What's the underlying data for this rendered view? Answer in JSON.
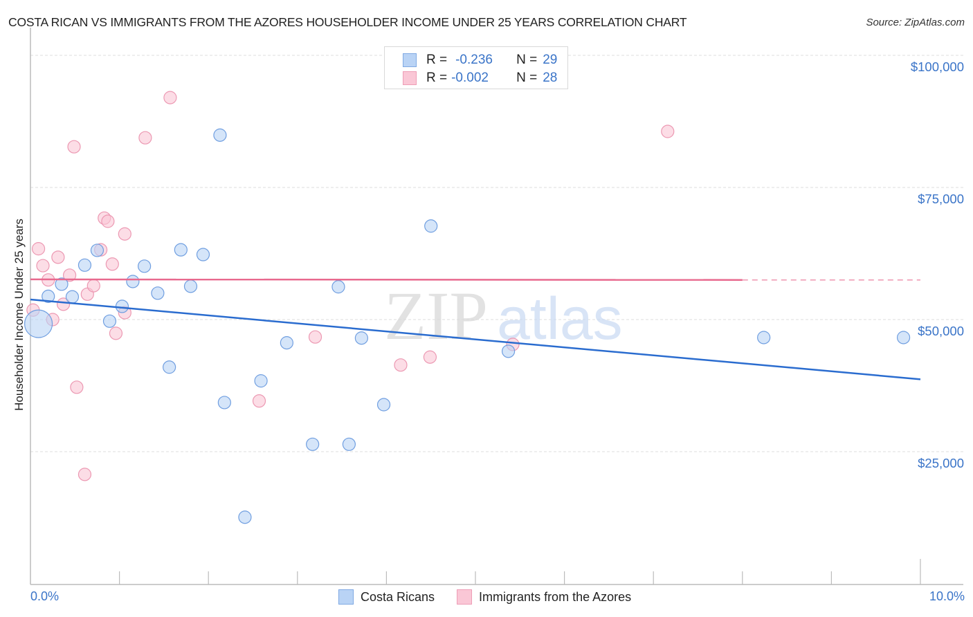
{
  "header": {
    "title": "COSTA RICAN VS IMMIGRANTS FROM THE AZORES HOUSEHOLDER INCOME UNDER 25 YEARS CORRELATION CHART",
    "source": "Source: ZipAtlas.com"
  },
  "stats_legend": {
    "rows": [
      {
        "series": "Costa Ricans",
        "r_label": "R =",
        "r_value": "-0.236",
        "n_label": "N =",
        "n_value": "29",
        "color": "#b9d3f5"
      },
      {
        "series": "Immigrants from the Azores",
        "r_label": "R =",
        "r_value": "-0.002",
        "n_label": "N =",
        "n_value": "28",
        "color": "#fac7d6"
      }
    ]
  },
  "axes": {
    "ylabel": "Householder Income Under 25 years",
    "yticks": [
      "$100,000",
      "$75,000",
      "$50,000",
      "$25,000"
    ],
    "xtick_left": "0.0%",
    "xtick_right": "10.0%"
  },
  "legend": {
    "items": [
      {
        "label": "Costa Ricans",
        "color": "#b9d3f5"
      },
      {
        "label": "Immigrants from the Azores",
        "color": "#fac7d6"
      }
    ]
  },
  "watermark": {
    "zip": "ZIP",
    "atlas": "atlas"
  },
  "colors": {
    "blue_fill": "#b9d3f5",
    "blue_stroke": "#6f9ee0",
    "blue_line": "#2a6ccf",
    "pink_fill": "#fac7d6",
    "pink_stroke": "#ec98b2",
    "pink_line": "#e8698e",
    "tick_text": "#3a74c8"
  },
  "chart_data": {
    "type": "scatter",
    "title": "COSTA RICAN VS IMMIGRANTS FROM THE AZORES HOUSEHOLDER INCOME UNDER 25 YEARS CORRELATION CHART",
    "xlabel": "",
    "ylabel": "Householder Income Under 25 years",
    "xlim": [
      0,
      10
    ],
    "ylim": [
      0,
      102000
    ],
    "x_unit": "%",
    "y_ticks": [
      25000,
      50000,
      75000,
      100000
    ],
    "x_tick_labels": [
      "0.0%",
      "10.0%"
    ],
    "grid": true,
    "legend_position": "bottom",
    "series": [
      {
        "name": "Costa Ricans",
        "r": -0.236,
        "n": 29,
        "color": "#b9d3f5",
        "trend": {
          "x": [
            0,
            10
          ],
          "y": [
            53800,
            38700
          ]
        },
        "points": [
          {
            "x": 0.09,
            "y": 49200,
            "size": "large"
          },
          {
            "x": 0.2,
            "y": 54400
          },
          {
            "x": 0.35,
            "y": 56700
          },
          {
            "x": 0.47,
            "y": 54300
          },
          {
            "x": 0.61,
            "y": 60300
          },
          {
            "x": 0.75,
            "y": 63100
          },
          {
            "x": 0.89,
            "y": 49700
          },
          {
            "x": 1.03,
            "y": 52500
          },
          {
            "x": 1.15,
            "y": 57200
          },
          {
            "x": 1.28,
            "y": 60100
          },
          {
            "x": 1.43,
            "y": 55000
          },
          {
            "x": 1.56,
            "y": 41000
          },
          {
            "x": 1.69,
            "y": 63200
          },
          {
            "x": 1.8,
            "y": 56300
          },
          {
            "x": 1.94,
            "y": 62300
          },
          {
            "x": 2.13,
            "y": 84900
          },
          {
            "x": 2.18,
            "y": 34300
          },
          {
            "x": 2.41,
            "y": 12600
          },
          {
            "x": 2.59,
            "y": 38400
          },
          {
            "x": 2.88,
            "y": 45600
          },
          {
            "x": 3.17,
            "y": 26400
          },
          {
            "x": 3.46,
            "y": 56200
          },
          {
            "x": 3.58,
            "y": 26400
          },
          {
            "x": 3.72,
            "y": 46500
          },
          {
            "x": 3.97,
            "y": 33900
          },
          {
            "x": 4.5,
            "y": 67700
          },
          {
            "x": 5.37,
            "y": 44000
          },
          {
            "x": 8.24,
            "y": 46600
          },
          {
            "x": 9.81,
            "y": 46600
          }
        ]
      },
      {
        "name": "Immigrants from the Azores",
        "r": -0.002,
        "n": 28,
        "color": "#fac7d6",
        "trend": {
          "x": [
            0,
            8.0
          ],
          "y": [
            57600,
            57500
          ],
          "dashed_extension_to": 10
        },
        "points": [
          {
            "x": 0.03,
            "y": 51800
          },
          {
            "x": 0.09,
            "y": 63400
          },
          {
            "x": 0.14,
            "y": 60200
          },
          {
            "x": 0.2,
            "y": 57500
          },
          {
            "x": 0.25,
            "y": 50000
          },
          {
            "x": 0.31,
            "y": 61800
          },
          {
            "x": 0.37,
            "y": 52900
          },
          {
            "x": 0.44,
            "y": 58400
          },
          {
            "x": 0.49,
            "y": 82700
          },
          {
            "x": 0.52,
            "y": 37200
          },
          {
            "x": 0.61,
            "y": 20700
          },
          {
            "x": 0.64,
            "y": 54800
          },
          {
            "x": 0.71,
            "y": 56400
          },
          {
            "x": 0.79,
            "y": 63200
          },
          {
            "x": 0.83,
            "y": 69200
          },
          {
            "x": 0.87,
            "y": 68600
          },
          {
            "x": 0.92,
            "y": 60500
          },
          {
            "x": 0.96,
            "y": 47400
          },
          {
            "x": 1.06,
            "y": 51300
          },
          {
            "x": 1.06,
            "y": 66200
          },
          {
            "x": 1.29,
            "y": 84400
          },
          {
            "x": 1.57,
            "y": 92000
          },
          {
            "x": 2.57,
            "y": 34600
          },
          {
            "x": 3.2,
            "y": 46700
          },
          {
            "x": 4.16,
            "y": 41400
          },
          {
            "x": 4.49,
            "y": 42900
          },
          {
            "x": 5.42,
            "y": 45300
          },
          {
            "x": 7.16,
            "y": 85600
          }
        ]
      }
    ]
  }
}
